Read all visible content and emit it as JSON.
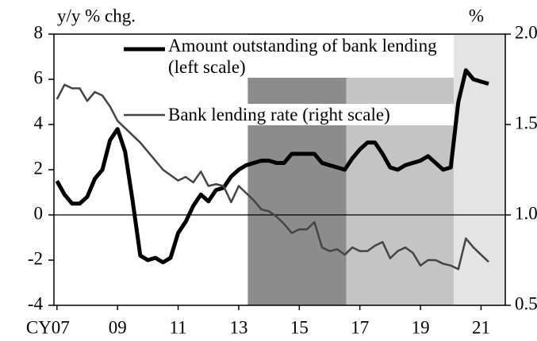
{
  "chart_data": {
    "type": "line",
    "y_label": "y/y % chg.",
    "y2_label": "%",
    "x": [
      2007,
      2007.25,
      2007.5,
      2007.75,
      2008,
      2008.25,
      2008.5,
      2008.75,
      2009,
      2009.25,
      2009.5,
      2009.75,
      2010,
      2010.25,
      2010.5,
      2010.75,
      2011,
      2011.25,
      2011.5,
      2011.75,
      2012,
      2012.25,
      2012.5,
      2012.75,
      2013,
      2013.25,
      2013.5,
      2013.75,
      2014,
      2014.25,
      2014.5,
      2014.75,
      2015,
      2015.25,
      2015.5,
      2015.75,
      2016,
      2016.25,
      2016.5,
      2016.75,
      2017,
      2017.25,
      2017.5,
      2017.75,
      2018,
      2018.25,
      2018.5,
      2018.75,
      2019,
      2019.25,
      2019.5,
      2019.75,
      2020,
      2020.25,
      2020.5,
      2020.75,
      2021,
      2021.25
    ],
    "series": [
      {
        "name": "Amount outstanding of bank lending (left scale)",
        "color": "#000000",
        "width": 5,
        "values": [
          1.5,
          0.9,
          0.5,
          0.5,
          0.8,
          1.6,
          2.0,
          3.3,
          3.8,
          2.8,
          0.6,
          -1.8,
          -2.0,
          -1.9,
          -2.1,
          -1.9,
          -0.8,
          -0.3,
          0.4,
          0.9,
          0.6,
          1.1,
          1.2,
          1.7,
          2.0,
          2.2,
          2.3,
          2.4,
          2.4,
          2.3,
          2.3,
          2.7,
          2.7,
          2.7,
          2.7,
          2.3,
          2.2,
          2.1,
          2.0,
          2.5,
          2.9,
          3.2,
          3.2,
          2.7,
          2.1,
          2.0,
          2.2,
          2.3,
          2.4,
          2.6,
          2.3,
          2.0,
          2.1,
          5.0,
          6.4,
          6.0,
          5.9,
          5.8
        ]
      },
      {
        "name": "Bank lending rate (right scale)",
        "color": "#444444",
        "width": 2.5,
        "axis": "y2",
        "values": [
          1.64,
          1.72,
          1.7,
          1.7,
          1.63,
          1.68,
          1.66,
          1.6,
          1.52,
          1.48,
          1.44,
          1.4,
          1.35,
          1.3,
          1.25,
          1.22,
          1.19,
          1.21,
          1.18,
          1.24,
          1.16,
          1.17,
          1.16,
          1.07,
          1.16,
          1.12,
          1.08,
          1.03,
          1.02,
          0.99,
          0.95,
          0.9,
          0.92,
          0.92,
          0.96,
          0.82,
          0.8,
          0.81,
          0.78,
          0.82,
          0.8,
          0.8,
          0.83,
          0.85,
          0.76,
          0.8,
          0.82,
          0.79,
          0.72,
          0.75,
          0.75,
          0.73,
          0.72,
          0.7,
          0.87,
          0.82,
          0.78,
          0.74
        ]
      }
    ],
    "shaded_regions": [
      {
        "start": 2013.3,
        "end": 2016.55,
        "color": "#8c8c8c"
      },
      {
        "start": 2016.55,
        "end": 2020.1,
        "color": "#c4c4c4"
      },
      {
        "start": 2020.1,
        "end": 2021.8,
        "color": "#e4e4e4"
      }
    ],
    "xlim": [
      2006.9,
      2021.8
    ],
    "xticks": [
      {
        "value": 2007,
        "label": "CY07"
      },
      {
        "value": 2009,
        "label": "09"
      },
      {
        "value": 2011,
        "label": "11"
      },
      {
        "value": 2013,
        "label": "13"
      },
      {
        "value": 2015,
        "label": "15"
      },
      {
        "value": 2017,
        "label": "17"
      },
      {
        "value": 2019,
        "label": "19"
      },
      {
        "value": 2021,
        "label": "21"
      }
    ],
    "ylim": [
      -4,
      8
    ],
    "yticks": [
      -4,
      -2,
      0,
      2,
      4,
      6,
      8
    ],
    "y2lim": [
      0.5,
      2.0
    ],
    "y2ticks": [
      0.5,
      {
        "value": 1.0,
        "label": "1.0"
      },
      1.5,
      {
        "value": 2.0,
        "label": "2.0"
      }
    ],
    "zero_line": true
  }
}
